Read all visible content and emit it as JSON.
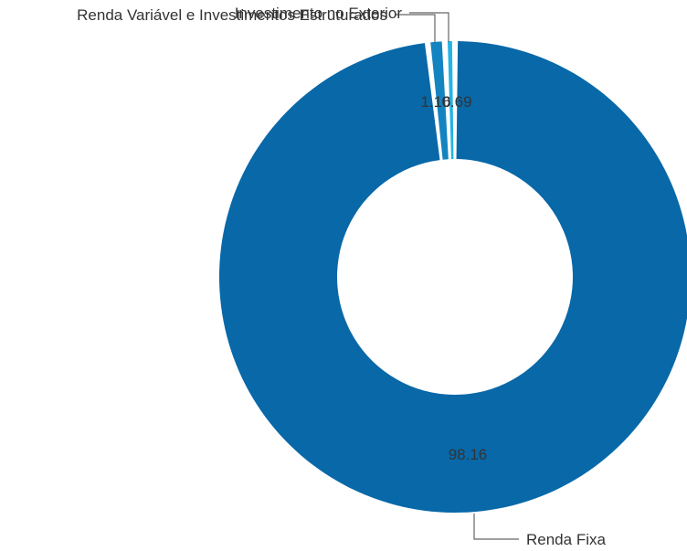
{
  "chart_data": {
    "type": "pie",
    "donut": true,
    "slices": [
      {
        "label": "Renda Fixa",
        "value": 98.16,
        "color": "#0868a8"
      },
      {
        "label": "Renda Variável e Investimentos Estruturados",
        "value": 1.16,
        "color": "#1484c0"
      },
      {
        "label": "Investimento no Exterior",
        "value": 0.69,
        "color": "#24b4e4"
      }
    ],
    "value_labels": [
      "98.16",
      "1.16",
      "0.69"
    ],
    "legend": "none"
  }
}
